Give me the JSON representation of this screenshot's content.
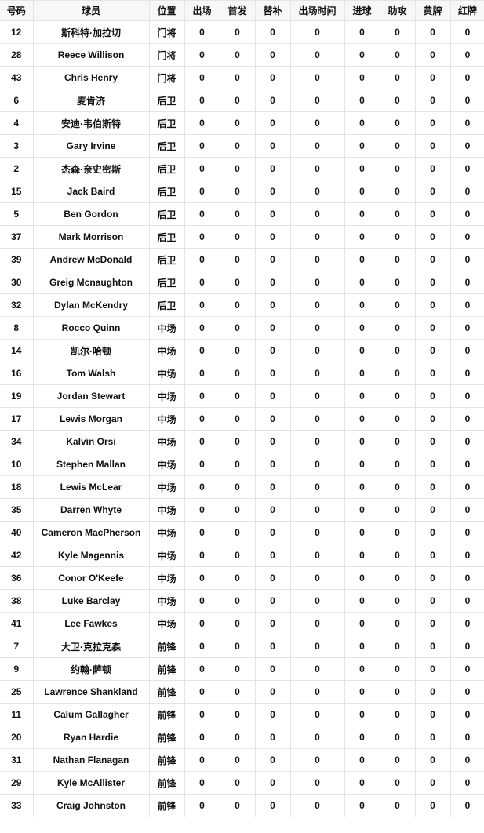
{
  "headers": [
    "号码",
    "球员",
    "位置",
    "出场",
    "首发",
    "替补",
    "出场时间",
    "进球",
    "助攻",
    "黄牌",
    "红牌"
  ],
  "rows": [
    [
      "12",
      "斯科特·加拉切",
      "门将",
      "0",
      "0",
      "0",
      "0",
      "0",
      "0",
      "0",
      "0"
    ],
    [
      "28",
      "Reece Willison",
      "门将",
      "0",
      "0",
      "0",
      "0",
      "0",
      "0",
      "0",
      "0"
    ],
    [
      "43",
      "Chris Henry",
      "门将",
      "0",
      "0",
      "0",
      "0",
      "0",
      "0",
      "0",
      "0"
    ],
    [
      "6",
      "麦肯济",
      "后卫",
      "0",
      "0",
      "0",
      "0",
      "0",
      "0",
      "0",
      "0"
    ],
    [
      "4",
      "安迪·韦伯斯特",
      "后卫",
      "0",
      "0",
      "0",
      "0",
      "0",
      "0",
      "0",
      "0"
    ],
    [
      "3",
      "Gary Irvine",
      "后卫",
      "0",
      "0",
      "0",
      "0",
      "0",
      "0",
      "0",
      "0"
    ],
    [
      "2",
      "杰森·奈史密斯",
      "后卫",
      "0",
      "0",
      "0",
      "0",
      "0",
      "0",
      "0",
      "0"
    ],
    [
      "15",
      "Jack Baird",
      "后卫",
      "0",
      "0",
      "0",
      "0",
      "0",
      "0",
      "0",
      "0"
    ],
    [
      "5",
      "Ben Gordon",
      "后卫",
      "0",
      "0",
      "0",
      "0",
      "0",
      "0",
      "0",
      "0"
    ],
    [
      "37",
      "Mark Morrison",
      "后卫",
      "0",
      "0",
      "0",
      "0",
      "0",
      "0",
      "0",
      "0"
    ],
    [
      "39",
      "Andrew McDonald",
      "后卫",
      "0",
      "0",
      "0",
      "0",
      "0",
      "0",
      "0",
      "0"
    ],
    [
      "30",
      "Greig Mcnaughton",
      "后卫",
      "0",
      "0",
      "0",
      "0",
      "0",
      "0",
      "0",
      "0"
    ],
    [
      "32",
      "Dylan McKendry",
      "后卫",
      "0",
      "0",
      "0",
      "0",
      "0",
      "0",
      "0",
      "0"
    ],
    [
      "8",
      "Rocco Quinn",
      "中场",
      "0",
      "0",
      "0",
      "0",
      "0",
      "0",
      "0",
      "0"
    ],
    [
      "14",
      "凯尔·哈顿",
      "中场",
      "0",
      "0",
      "0",
      "0",
      "0",
      "0",
      "0",
      "0"
    ],
    [
      "16",
      "Tom Walsh",
      "中场",
      "0",
      "0",
      "0",
      "0",
      "0",
      "0",
      "0",
      "0"
    ],
    [
      "19",
      "Jordan Stewart",
      "中场",
      "0",
      "0",
      "0",
      "0",
      "0",
      "0",
      "0",
      "0"
    ],
    [
      "17",
      "Lewis Morgan",
      "中场",
      "0",
      "0",
      "0",
      "0",
      "0",
      "0",
      "0",
      "0"
    ],
    [
      "34",
      "Kalvin Orsi",
      "中场",
      "0",
      "0",
      "0",
      "0",
      "0",
      "0",
      "0",
      "0"
    ],
    [
      "10",
      "Stephen Mallan",
      "中场",
      "0",
      "0",
      "0",
      "0",
      "0",
      "0",
      "0",
      "0"
    ],
    [
      "18",
      "Lewis McLear",
      "中场",
      "0",
      "0",
      "0",
      "0",
      "0",
      "0",
      "0",
      "0"
    ],
    [
      "35",
      "Darren Whyte",
      "中场",
      "0",
      "0",
      "0",
      "0",
      "0",
      "0",
      "0",
      "0"
    ],
    [
      "40",
      "Cameron MacPherson",
      "中场",
      "0",
      "0",
      "0",
      "0",
      "0",
      "0",
      "0",
      "0"
    ],
    [
      "42",
      "Kyle Magennis",
      "中场",
      "0",
      "0",
      "0",
      "0",
      "0",
      "0",
      "0",
      "0"
    ],
    [
      "36",
      "Conor O'Keefe",
      "中场",
      "0",
      "0",
      "0",
      "0",
      "0",
      "0",
      "0",
      "0"
    ],
    [
      "38",
      "Luke Barclay",
      "中场",
      "0",
      "0",
      "0",
      "0",
      "0",
      "0",
      "0",
      "0"
    ],
    [
      "41",
      "Lee Fawkes",
      "中场",
      "0",
      "0",
      "0",
      "0",
      "0",
      "0",
      "0",
      "0"
    ],
    [
      "7",
      "大卫·克拉克森",
      "前锋",
      "0",
      "0",
      "0",
      "0",
      "0",
      "0",
      "0",
      "0"
    ],
    [
      "9",
      "约翰·萨顿",
      "前锋",
      "0",
      "0",
      "0",
      "0",
      "0",
      "0",
      "0",
      "0"
    ],
    [
      "25",
      "Lawrence Shankland",
      "前锋",
      "0",
      "0",
      "0",
      "0",
      "0",
      "0",
      "0",
      "0"
    ],
    [
      "11",
      "Calum Gallagher",
      "前锋",
      "0",
      "0",
      "0",
      "0",
      "0",
      "0",
      "0",
      "0"
    ],
    [
      "20",
      "Ryan Hardie",
      "前锋",
      "0",
      "0",
      "0",
      "0",
      "0",
      "0",
      "0",
      "0"
    ],
    [
      "31",
      "Nathan Flanagan",
      "前锋",
      "0",
      "0",
      "0",
      "0",
      "0",
      "0",
      "0",
      "0"
    ],
    [
      "29",
      "Kyle McAllister",
      "前锋",
      "0",
      "0",
      "0",
      "0",
      "0",
      "0",
      "0",
      "0"
    ],
    [
      "33",
      "Craig Johnston",
      "前锋",
      "0",
      "0",
      "0",
      "0",
      "0",
      "0",
      "0",
      "0"
    ]
  ]
}
